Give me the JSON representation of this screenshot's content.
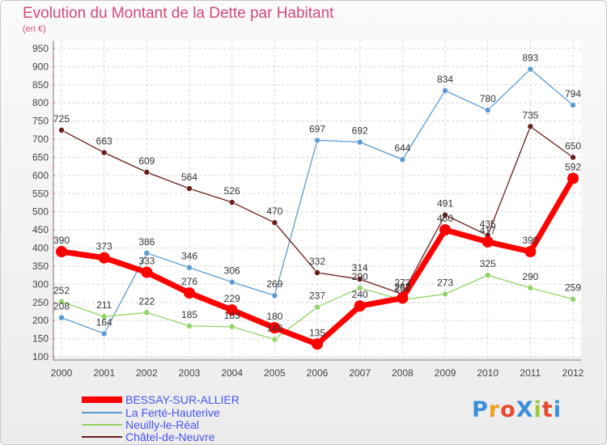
{
  "title": "Evolution du Montant de la Dette par Habitant",
  "subtitle": "(en €)",
  "logo": {
    "text": "ProXiti",
    "colors": [
      "#3b8fd8",
      "#f0a020",
      "#e84a30",
      "#3b8fd8",
      "#9ac836",
      "#e84a30",
      "#3b8fd8"
    ]
  },
  "chart_data": {
    "type": "line",
    "x": [
      "2000",
      "2001",
      "2002",
      "2003",
      "2004",
      "2005",
      "2006",
      "2007",
      "2008",
      "2009",
      "2010",
      "2011",
      "2012"
    ],
    "ylim": [
      100,
      950
    ],
    "yticks": [
      100,
      150,
      200,
      250,
      300,
      350,
      400,
      450,
      500,
      550,
      600,
      650,
      700,
      750,
      800,
      850,
      900,
      950
    ],
    "grid": true,
    "legend_position": "bottom-left",
    "series": [
      {
        "name": "BESSAY-SUR-ALLIER",
        "color": "#ff0000",
        "width": 7,
        "marker": 7,
        "values": [
          390,
          373,
          333,
          276,
          229,
          180,
          135,
          240,
          262,
          450,
          417,
          390,
          592
        ],
        "labels": [
          "390",
          "373",
          "333",
          "276",
          "229",
          "180",
          "135",
          "240",
          "262",
          "450",
          "417",
          "390",
          "592"
        ]
      },
      {
        "name": "La Ferté-Hauterive",
        "color": "#5a9bd4",
        "width": 1.3,
        "marker": 3.5,
        "values": [
          208,
          164,
          386,
          346,
          306,
          269,
          697,
          692,
          644,
          834,
          780,
          893,
          794
        ],
        "labels": [
          "208",
          "164",
          "386",
          "346",
          "306",
          "269",
          "697",
          "692",
          "644",
          "834",
          "780",
          "893",
          "794"
        ]
      },
      {
        "name": "Neuilly-le-Réal",
        "color": "#8fd464",
        "width": 1.3,
        "marker": 3.5,
        "values": [
          252,
          211,
          222,
          185,
          183,
          148,
          237,
          290,
          257,
          273,
          325,
          290,
          259
        ],
        "labels": [
          "252",
          "211",
          "222",
          "185",
          "183",
          "148",
          "237",
          "290",
          "257",
          "273",
          "325",
          "290",
          "259"
        ]
      },
      {
        "name": "Châtel-de-Neuvre",
        "color": "#6b1c1c",
        "width": 1.3,
        "marker": 3.5,
        "values": [
          725,
          663,
          609,
          564,
          526,
          470,
          332,
          314,
          273,
          491,
          435,
          735,
          650
        ],
        "labels": [
          "725",
          "663",
          "609",
          "564",
          "526",
          "470",
          "332",
          "314",
          "273",
          "491",
          "435",
          "735",
          "650"
        ]
      }
    ]
  }
}
